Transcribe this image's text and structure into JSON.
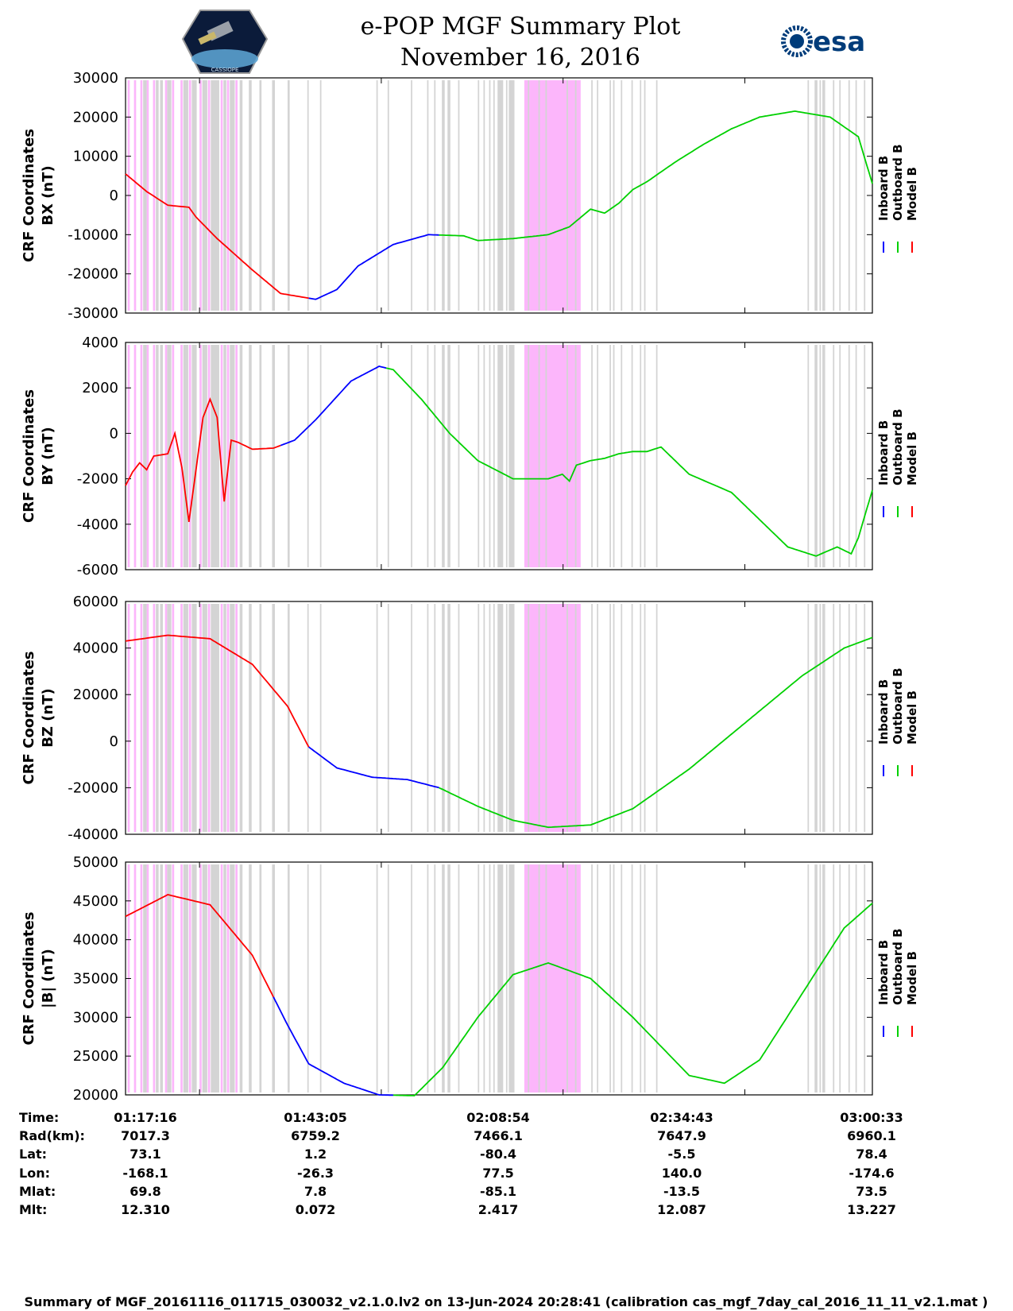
{
  "header": {
    "title": "e-POP MGF Summary Plot",
    "date": "November 16, 2016",
    "logo_left_text": "CASSIOPE",
    "logo_right_text": "esa"
  },
  "colors": {
    "inboard": "#0000ff",
    "outboard": "#00d000",
    "model": "#ff0000",
    "pink_band": "#fcb6fb",
    "gray_band": "#d4d4d4"
  },
  "legend": [
    "Inboard B",
    "Outboard B",
    "Model B"
  ],
  "chart_data": [
    {
      "type": "line",
      "ylabel_line1": "CRF Coordinates",
      "ylabel_line2": "BX (nT)",
      "ylim": [
        -30000,
        30000
      ],
      "yticks": [
        -30000,
        -20000,
        -10000,
        0,
        10000,
        20000,
        30000
      ],
      "x_minutes": [
        0,
        3,
        6,
        9,
        10,
        13,
        18,
        22,
        27,
        30,
        33,
        38,
        43,
        48,
        50,
        55,
        60,
        63,
        66,
        68,
        70,
        72,
        74,
        78,
        82,
        86,
        90,
        95,
        100,
        104,
        106
      ],
      "values": [
        5500,
        1000,
        -2500,
        -3000,
        -5500,
        -11000,
        -19000,
        -25000,
        -26500,
        -24000,
        -18000,
        -12500,
        -10000,
        -10300,
        -11500,
        -11000,
        -10000,
        -8000,
        -3500,
        -4500,
        -2000,
        1500,
        3500,
        8500,
        13000,
        17000,
        20000,
        21500,
        20000,
        15000,
        3000
      ],
      "series_segments": [
        {
          "name": "Model B",
          "from": 0,
          "to": 26
        },
        {
          "name": "Inboard B",
          "from": 26,
          "to": 44.5
        },
        {
          "name": "Outboard B",
          "from": 44.5,
          "to": 106
        }
      ]
    },
    {
      "type": "line",
      "ylabel_line1": "CRF Coordinates",
      "ylabel_line2": "BY (nT)",
      "ylim": [
        -6000,
        4000
      ],
      "yticks": [
        -6000,
        -4000,
        -2000,
        0,
        2000,
        4000
      ],
      "x_minutes": [
        0,
        1,
        2,
        3,
        4,
        5,
        6,
        7,
        8,
        9,
        11,
        12,
        13,
        14,
        15,
        16,
        18,
        21,
        24,
        27,
        32,
        36,
        38,
        42,
        46,
        50,
        55,
        60,
        62,
        63,
        64,
        66,
        68,
        70,
        72,
        74,
        76,
        80,
        86,
        90,
        94,
        98,
        101,
        103,
        104,
        106
      ],
      "values": [
        -2300,
        -1700,
        -1300,
        -1600,
        -1000,
        -950,
        -900,
        0,
        -1500,
        -3900,
        700,
        1500,
        700,
        -3000,
        -300,
        -400,
        -700,
        -650,
        -300,
        600,
        2300,
        2950,
        2800,
        1500,
        0,
        -1200,
        -2000,
        -2000,
        -1800,
        -2100,
        -1400,
        -1200,
        -1100,
        -900,
        -800,
        -800,
        -600,
        -1800,
        -2600,
        -3800,
        -5000,
        -5400,
        -5000,
        -5300,
        -4600,
        -2500
      ],
      "series_segments": [
        {
          "name": "Model B",
          "from": 0,
          "to": 22
        },
        {
          "name": "Inboard B",
          "from": 22,
          "to": 37
        },
        {
          "name": "Outboard B",
          "from": 37,
          "to": 106
        }
      ]
    },
    {
      "type": "line",
      "ylabel_line1": "CRF Coordinates",
      "ylabel_line2": "BZ (nT)",
      "ylim": [
        -40000,
        60000
      ],
      "yticks": [
        -40000,
        -20000,
        0,
        20000,
        40000,
        60000
      ],
      "x_minutes": [
        0,
        6,
        12,
        18,
        23,
        26,
        30,
        35,
        40,
        44.5,
        50,
        55,
        60,
        66,
        72,
        80,
        88,
        96,
        102,
        106
      ],
      "values": [
        43000,
        45500,
        44000,
        33000,
        15000,
        -2500,
        -11500,
        -15500,
        -16500,
        -20000,
        -28000,
        -34000,
        -37000,
        -36000,
        -29000,
        -12000,
        8000,
        28000,
        40000,
        44500
      ],
      "series_segments": [
        {
          "name": "Model B",
          "from": 0,
          "to": 26
        },
        {
          "name": "Inboard B",
          "from": 26,
          "to": 44.5
        },
        {
          "name": "Outboard B",
          "from": 44.5,
          "to": 106
        }
      ]
    },
    {
      "type": "line",
      "ylabel_line1": "CRF Coordinates",
      "ylabel_line2": "|B| (nT)",
      "ylim": [
        20000,
        50000
      ],
      "yticks": [
        20000,
        25000,
        30000,
        35000,
        40000,
        45000,
        50000
      ],
      "x_minutes": [
        0,
        6,
        12,
        18,
        23,
        26,
        31,
        36,
        41,
        45,
        50,
        55,
        60,
        66,
        72,
        80,
        85,
        90,
        96,
        102,
        106
      ],
      "values": [
        43000,
        45800,
        44500,
        38000,
        29000,
        24000,
        21500,
        20000,
        19900,
        23500,
        30000,
        35500,
        37000,
        35000,
        30000,
        22500,
        21500,
        24500,
        33000,
        41500,
        44700
      ],
      "series_segments": [
        {
          "name": "Model B",
          "from": 0,
          "to": 21
        },
        {
          "name": "Inboard B",
          "from": 21,
          "to": 38
        },
        {
          "name": "Outboard B",
          "from": 38,
          "to": 106
        }
      ]
    }
  ],
  "bands": {
    "pink": [
      [
        0.3,
        0.6
      ],
      [
        1.2,
        1.5
      ],
      [
        2.1,
        2.4
      ],
      [
        3.0,
        3.3
      ],
      [
        3.9,
        4.2
      ],
      [
        5.6,
        5.9
      ],
      [
        6.6,
        6.9
      ],
      [
        7.8,
        8.1
      ],
      [
        9.0,
        9.3
      ],
      [
        10.5,
        10.8
      ],
      [
        11.7,
        12.0
      ],
      [
        13.5,
        13.8
      ],
      [
        14.4,
        14.7
      ],
      [
        15.6,
        15.9
      ],
      [
        56.6,
        64.6
      ]
    ],
    "gray": [
      [
        2.5,
        3.0
      ],
      [
        4.3,
        4.7
      ],
      [
        4.9,
        5.3
      ],
      [
        5.9,
        6.5
      ],
      [
        8.2,
        8.9
      ],
      [
        9.4,
        10.1
      ],
      [
        10.9,
        11.6
      ],
      [
        12.1,
        13.3
      ],
      [
        13.9,
        14.3
      ],
      [
        14.8,
        15.5
      ],
      [
        16.2,
        16.6
      ],
      [
        17.5,
        17.9
      ],
      [
        19.0,
        19.3
      ],
      [
        20.8,
        21.2
      ],
      [
        23.0,
        23.3
      ],
      [
        25.8,
        26.0
      ],
      [
        27.6,
        27.8
      ],
      [
        35.6,
        35.8
      ],
      [
        37.2,
        37.4
      ],
      [
        40.5,
        40.7
      ],
      [
        42.8,
        43.0
      ],
      [
        43.8,
        44.0
      ],
      [
        44.9,
        45.3
      ],
      [
        45.7,
        46.1
      ],
      [
        47.2,
        47.4
      ],
      [
        50.0,
        50.2
      ],
      [
        50.8,
        51.0
      ],
      [
        51.6,
        51.8
      ],
      [
        52.2,
        52.4
      ],
      [
        52.8,
        53.6
      ],
      [
        54.0,
        54.2
      ],
      [
        54.4,
        55.2
      ],
      [
        57.1,
        57.3
      ],
      [
        58.6,
        58.8
      ],
      [
        59.6,
        59.8
      ],
      [
        62.6,
        62.8
      ],
      [
        63.8,
        64.0
      ],
      [
        66.1,
        66.3
      ],
      [
        66.9,
        67.1
      ],
      [
        68.7,
        68.9
      ],
      [
        69.2,
        69.4
      ],
      [
        70.3,
        70.5
      ],
      [
        71.8,
        72.0
      ],
      [
        73.0,
        73.2
      ],
      [
        73.6,
        73.8
      ],
      [
        75.3,
        75.5
      ],
      [
        96.8,
        97.0
      ],
      [
        97.8,
        98.2
      ],
      [
        98.5,
        98.7
      ],
      [
        98.9,
        99.3
      ],
      [
        100.4,
        100.6
      ],
      [
        101.3,
        101.5
      ],
      [
        102.6,
        102.8
      ],
      [
        103.6,
        103.8
      ],
      [
        104.8,
        105.0
      ]
    ]
  },
  "xaxis": {
    "range_minutes": [
      0,
      106
    ],
    "tick_minutes": [
      10.5,
      36.3,
      62.1,
      87.9
    ]
  },
  "table": {
    "labels": [
      "Time:",
      "Rad(km):",
      "Lat:",
      "Lon:",
      "Mlat:",
      "Mlt:"
    ],
    "columns": [
      [
        "01:17:16",
        "7017.3",
        "73.1",
        "-168.1",
        "69.8",
        "12.310"
      ],
      [
        "01:43:05",
        "6759.2",
        "1.2",
        "-26.3",
        "7.8",
        "0.072"
      ],
      [
        "02:08:54",
        "7466.1",
        "-80.4",
        "77.5",
        "-85.1",
        "2.417"
      ],
      [
        "02:34:43",
        "7647.9",
        "-5.5",
        "140.0",
        "-13.5",
        "12.087"
      ],
      [
        "03:00:33",
        "6960.1",
        "78.4",
        "-174.6",
        "73.5",
        "13.227"
      ]
    ]
  },
  "footer": "Summary of MGF_20161116_011715_030032_v2.1.0.lv2 on 13-Jun-2024 20:28:41 (calibration cas_mgf_7day_cal_2016_11_11_v2.1.mat )"
}
